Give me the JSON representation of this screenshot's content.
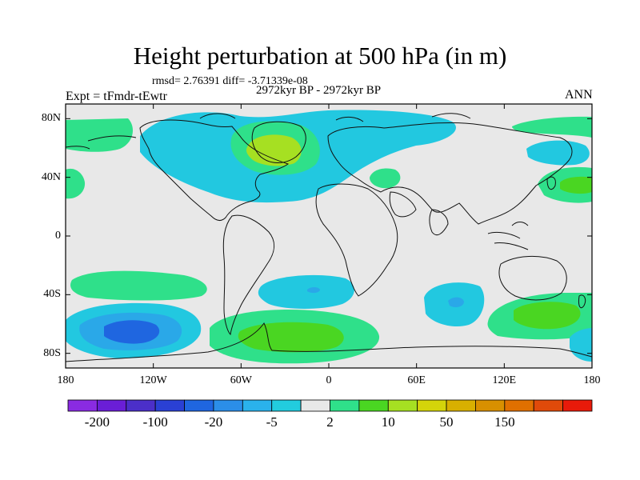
{
  "title": "Height perturbation at 500 hPa (in m)",
  "stats": "rmsd= 2.76391 diff= -3.71339e-08",
  "period": "2972kyr BP - 2972kyr BP",
  "experiment": "Expt = tFmdr-tEwtr",
  "season": "ANN",
  "lat_ticks": [
    {
      "label": "80N",
      "value": 80
    },
    {
      "label": "40N",
      "value": 40
    },
    {
      "label": "0",
      "value": 0
    },
    {
      "label": "40S",
      "value": -40
    },
    {
      "label": "80S",
      "value": -80
    }
  ],
  "lon_ticks": [
    {
      "label": "180",
      "value": -180
    },
    {
      "label": "120W",
      "value": -120
    },
    {
      "label": "60W",
      "value": -60
    },
    {
      "label": "0",
      "value": 0
    },
    {
      "label": "60E",
      "value": 60
    },
    {
      "label": "120E",
      "value": 120
    },
    {
      "label": "180",
      "value": 180
    }
  ],
  "colorbar": {
    "colors": [
      "#8a2be2",
      "#6a1ed6",
      "#4b2fc9",
      "#2a40d4",
      "#1f66e0",
      "#2b8ee8",
      "#2ab2ec",
      "#22ccde",
      "#e8e8e8",
      "#2fe08a",
      "#4ad622",
      "#a6e022",
      "#d4d40a",
      "#d8b000",
      "#d89000",
      "#e07000",
      "#e04a0a",
      "#e81a0a"
    ],
    "labels": [
      {
        "text": "-200",
        "boundary": 1
      },
      {
        "text": "-100",
        "boundary": 3
      },
      {
        "text": "-20",
        "boundary": 5
      },
      {
        "text": "-5",
        "boundary": 7
      },
      {
        "text": "2",
        "boundary": 9
      },
      {
        "text": "10",
        "boundary": 11
      },
      {
        "text": "50",
        "boundary": 13
      },
      {
        "text": "150",
        "boundary": 15
      }
    ]
  },
  "map_colors": {
    "background": "#e8e8e8",
    "blue_light": "#22c8e0",
    "blue_mid": "#2aa8e8",
    "blue_dark": "#1f66e0",
    "green_light": "#2fe08a",
    "green_mid": "#4ad622",
    "yellow_green": "#a6e022",
    "coast": "#111111"
  }
}
